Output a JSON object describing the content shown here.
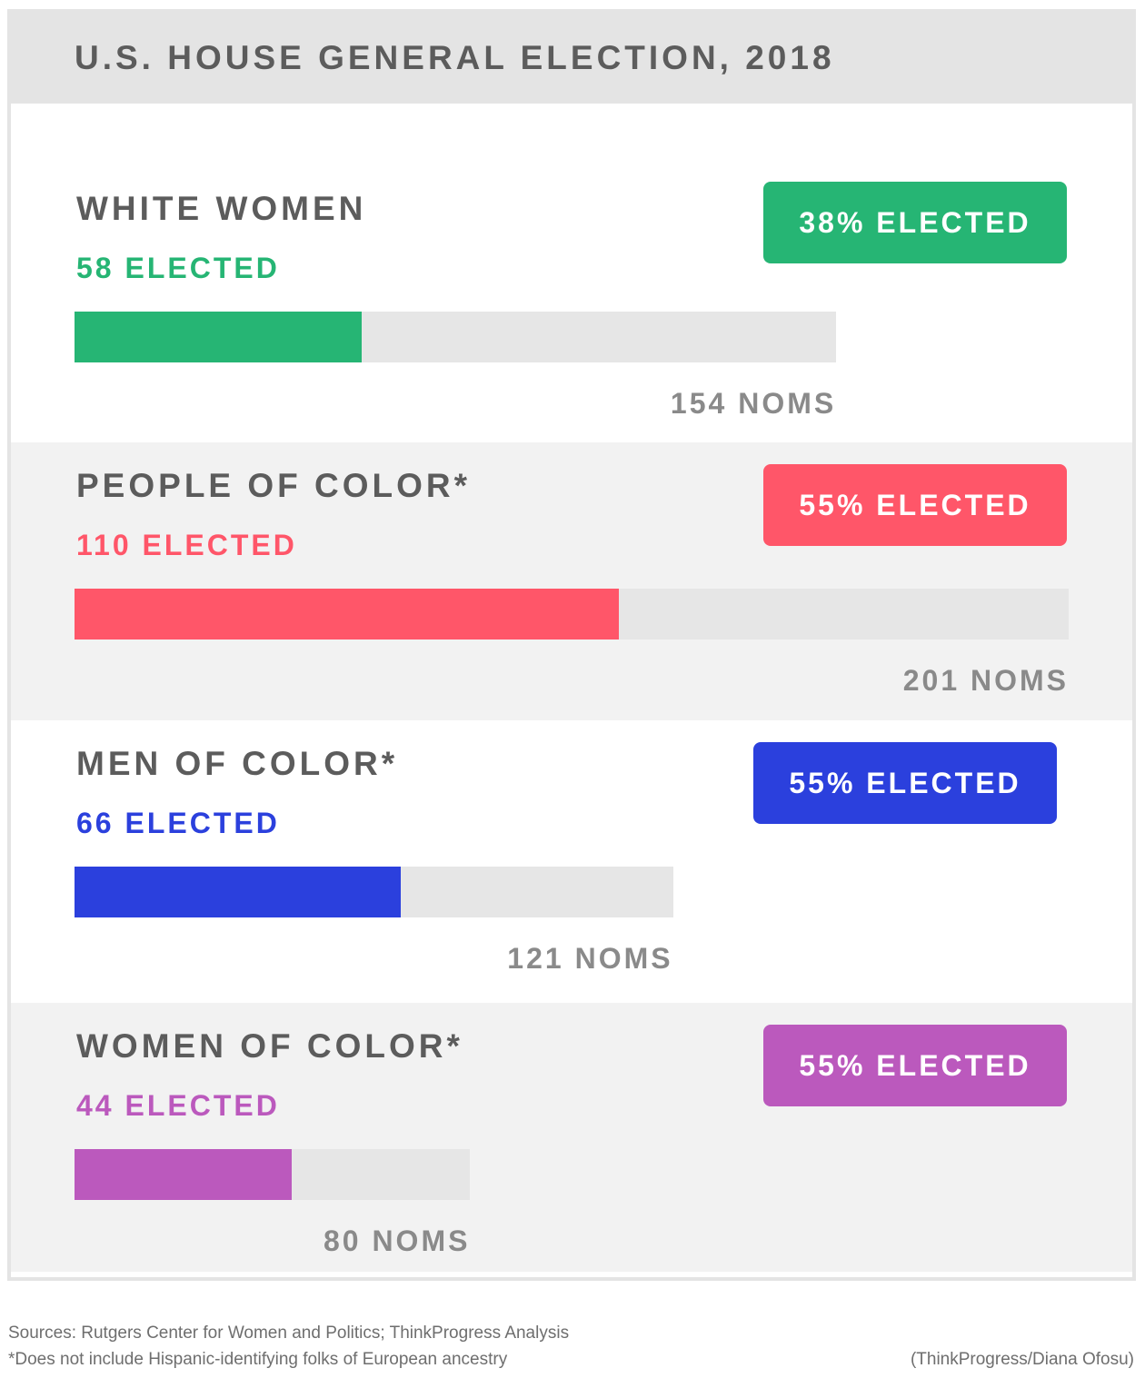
{
  "chart_data": {
    "type": "bar",
    "title": "U.S. HOUSE GENERAL ELECTION, 2018",
    "series": [
      {
        "name": "WHITE WOMEN",
        "elected": 58,
        "elected_label": "58 ELECTED",
        "nominees": 154,
        "noms_label": "154 NOMS",
        "percent_label": "38% ELECTED",
        "color": "#26b574"
      },
      {
        "name": "PEOPLE OF COLOR*",
        "elected": 110,
        "elected_label": "110 ELECTED",
        "nominees": 201,
        "noms_label": "201 NOMS",
        "percent_label": "55% ELECTED",
        "color": "#ff5669"
      },
      {
        "name": "MEN OF COLOR*",
        "elected": 66,
        "elected_label": "66 ELECTED",
        "nominees": 121,
        "noms_label": "121 NOMS",
        "percent_label": "55% ELECTED",
        "color": "#2b40dd"
      },
      {
        "name": "WOMEN OF COLOR*",
        "elected": 44,
        "elected_label": "44 ELECTED",
        "nominees": 80,
        "noms_label": "80 NOMS",
        "percent_label": "55% ELECTED",
        "color": "#bb59bd"
      }
    ]
  },
  "footer": {
    "sources": "Sources: Rutgers Center for Women and Politics; ThinkProgress Analysis",
    "note": "*Does not include Hispanic-identifying folks of European ancestry",
    "credit": "(ThinkProgress/Diana Ofosu)"
  },
  "colors": {
    "header_bg": "#e4e4e4",
    "track": "#e6e6e6",
    "shaded_section": "#f2f2f2",
    "label_text": "#5c5c5c",
    "noms_text": "#8a8a8a"
  }
}
